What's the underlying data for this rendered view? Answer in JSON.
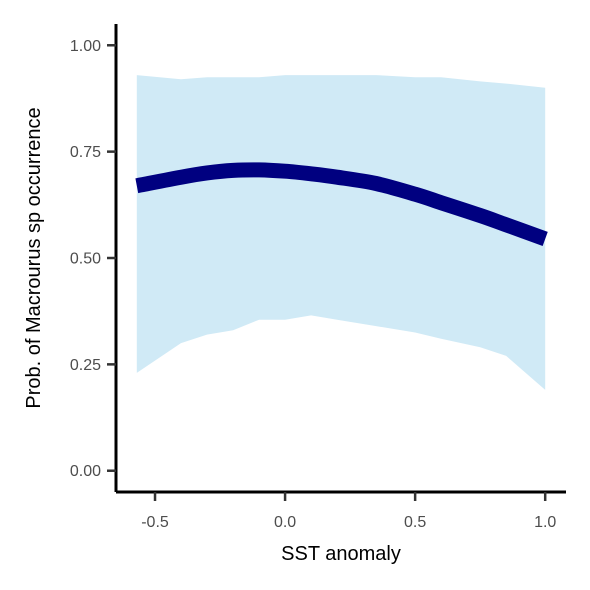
{
  "chart_data": {
    "type": "line",
    "title": "",
    "xlabel": "SST anomaly",
    "ylabel": "Prob. of  Macrourus sp  occurrence",
    "xlim": [
      -0.65,
      1.08
    ],
    "ylim": [
      -0.05,
      1.05
    ],
    "x_ticks": [
      -0.5,
      0.0,
      0.5,
      1.0
    ],
    "x_tick_labels": [
      "-0.5",
      "0.0",
      "0.5",
      "1.0"
    ],
    "y_ticks": [
      0.0,
      0.25,
      0.5,
      0.75,
      1.0
    ],
    "y_tick_labels": [
      "0.00",
      "0.25",
      "0.50",
      "0.75",
      "1.00"
    ],
    "grid": false,
    "legend": "none",
    "colors": {
      "line": "#000080",
      "ribbon": "#d0eaf6",
      "axis": "#000000"
    },
    "series": [
      {
        "x": [
          -0.57,
          -0.4,
          -0.3,
          -0.2,
          -0.1,
          0.0,
          0.1,
          0.2,
          0.35,
          0.5,
          0.6,
          0.75,
          0.85,
          1.0
        ],
        "y": [
          0.67,
          0.69,
          0.7,
          0.706,
          0.707,
          0.704,
          0.698,
          0.69,
          0.675,
          0.65,
          0.63,
          0.6,
          0.578,
          0.545
        ],
        "lower": [
          0.23,
          0.3,
          0.32,
          0.33,
          0.355,
          0.355,
          0.365,
          0.355,
          0.34,
          0.325,
          0.31,
          0.29,
          0.27,
          0.19
        ],
        "upper": [
          0.93,
          0.92,
          0.925,
          0.925,
          0.925,
          0.93,
          0.93,
          0.93,
          0.93,
          0.925,
          0.925,
          0.915,
          0.91,
          0.9
        ]
      }
    ]
  }
}
